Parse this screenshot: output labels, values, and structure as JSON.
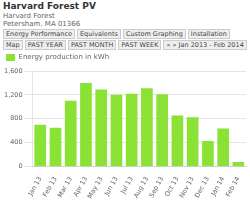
{
  "chart_data": {
    "type": "bar",
    "title": "Harvard Forest PV",
    "subtitle": [
      "Harvard Forest",
      "Petersham, MA 01366"
    ],
    "annotations": [
      "Energy Performance",
      "Equivalents",
      "Custom Graphing",
      "Installation",
      "Map",
      "PAST YEAR",
      "PAST MONTH",
      "PAST WEEK",
      "« »  Jan 2013 - Feb 2014"
    ],
    "categories": [
      "Jan 13",
      "Feb 13",
      "Mar 13",
      "Apr 13",
      "May 13",
      "Jun 13",
      "Jul 13",
      "Aug 13",
      "Sep 13",
      "Oct 13",
      "Nov 13",
      "Dec 13",
      "Jan 14",
      "Feb 14"
    ],
    "series": [
      {
        "name": "Energy production in kWh",
        "color": "#8ae234",
        "values": [
          700,
          650,
          1100,
          1400,
          1290,
          1200,
          1220,
          1310,
          1210,
          855,
          825,
          425,
          635,
          75
        ]
      }
    ],
    "ylim": [
      0,
      1600
    ],
    "yticks": [
      0,
      400,
      800,
      {
        "value": 1200,
        "label": "1,200"
      },
      {
        "value": 1600,
        "label": "1,600"
      }
    ],
    "grid": true,
    "legend": "top"
  }
}
